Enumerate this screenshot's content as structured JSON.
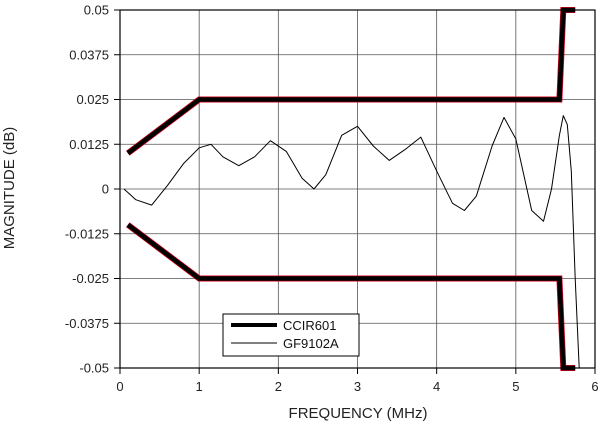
{
  "chart_data": {
    "type": "line",
    "title": "",
    "xlabel": "FREQUENCY (MHz)",
    "ylabel": "MAGNITUDE (dB)",
    "xlim": [
      0,
      6
    ],
    "ylim": [
      -0.05,
      0.05
    ],
    "grid": true,
    "legend_position": "bottom-left",
    "x_ticks": [
      0,
      1,
      2,
      3,
      4,
      5,
      6
    ],
    "x_tick_labels": [
      "0",
      "1",
      "2",
      "3",
      "4",
      "5",
      "6"
    ],
    "y_ticks": [
      0.05,
      0.0375,
      0.025,
      0.0125,
      0,
      -0.0125,
      -0.025,
      -0.0375,
      -0.05
    ],
    "y_tick_labels": [
      "0.05",
      "0.0375",
      "0.025",
      "0.0125",
      "0",
      "-0.0125",
      "-0.025",
      "-0.0375",
      "-0.05"
    ],
    "series": [
      {
        "name": "CCIR601",
        "role": "mask",
        "color": "#000000",
        "accent_color": "#d0021b",
        "segments": [
          [
            [
              0.1,
              0.01
            ],
            [
              1.0,
              0.025
            ],
            [
              5.5,
              0.025
            ],
            [
              5.55,
              0.025
            ],
            [
              5.6,
              0.05
            ],
            [
              5.75,
              0.05
            ]
          ],
          [
            [
              0.1,
              -0.01
            ],
            [
              1.0,
              -0.025
            ],
            [
              5.5,
              -0.025
            ],
            [
              5.55,
              -0.025
            ],
            [
              5.6,
              -0.05
            ],
            [
              5.75,
              -0.05
            ]
          ]
        ]
      },
      {
        "name": "GF9102A",
        "role": "response",
        "color": "#000000",
        "x": [
          0.05,
          0.2,
          0.4,
          0.6,
          0.8,
          1.0,
          1.15,
          1.3,
          1.5,
          1.7,
          1.9,
          2.1,
          2.3,
          2.45,
          2.6,
          2.8,
          3.0,
          3.2,
          3.4,
          3.6,
          3.8,
          4.0,
          4.2,
          4.35,
          4.5,
          4.7,
          4.85,
          5.0,
          5.2,
          5.35,
          5.45,
          5.55,
          5.6,
          5.65,
          5.7,
          5.75,
          5.8
        ],
        "y": [
          0.0,
          -0.003,
          -0.0045,
          0.001,
          0.007,
          0.0115,
          0.0125,
          0.009,
          0.0065,
          0.009,
          0.0135,
          0.0105,
          0.003,
          0.0,
          0.004,
          0.015,
          0.0175,
          0.012,
          0.008,
          0.011,
          0.0145,
          0.005,
          -0.004,
          -0.006,
          -0.002,
          0.012,
          0.02,
          0.014,
          -0.006,
          -0.009,
          0.0,
          0.015,
          0.0205,
          0.018,
          0.005,
          -0.025,
          -0.05
        ]
      }
    ]
  }
}
